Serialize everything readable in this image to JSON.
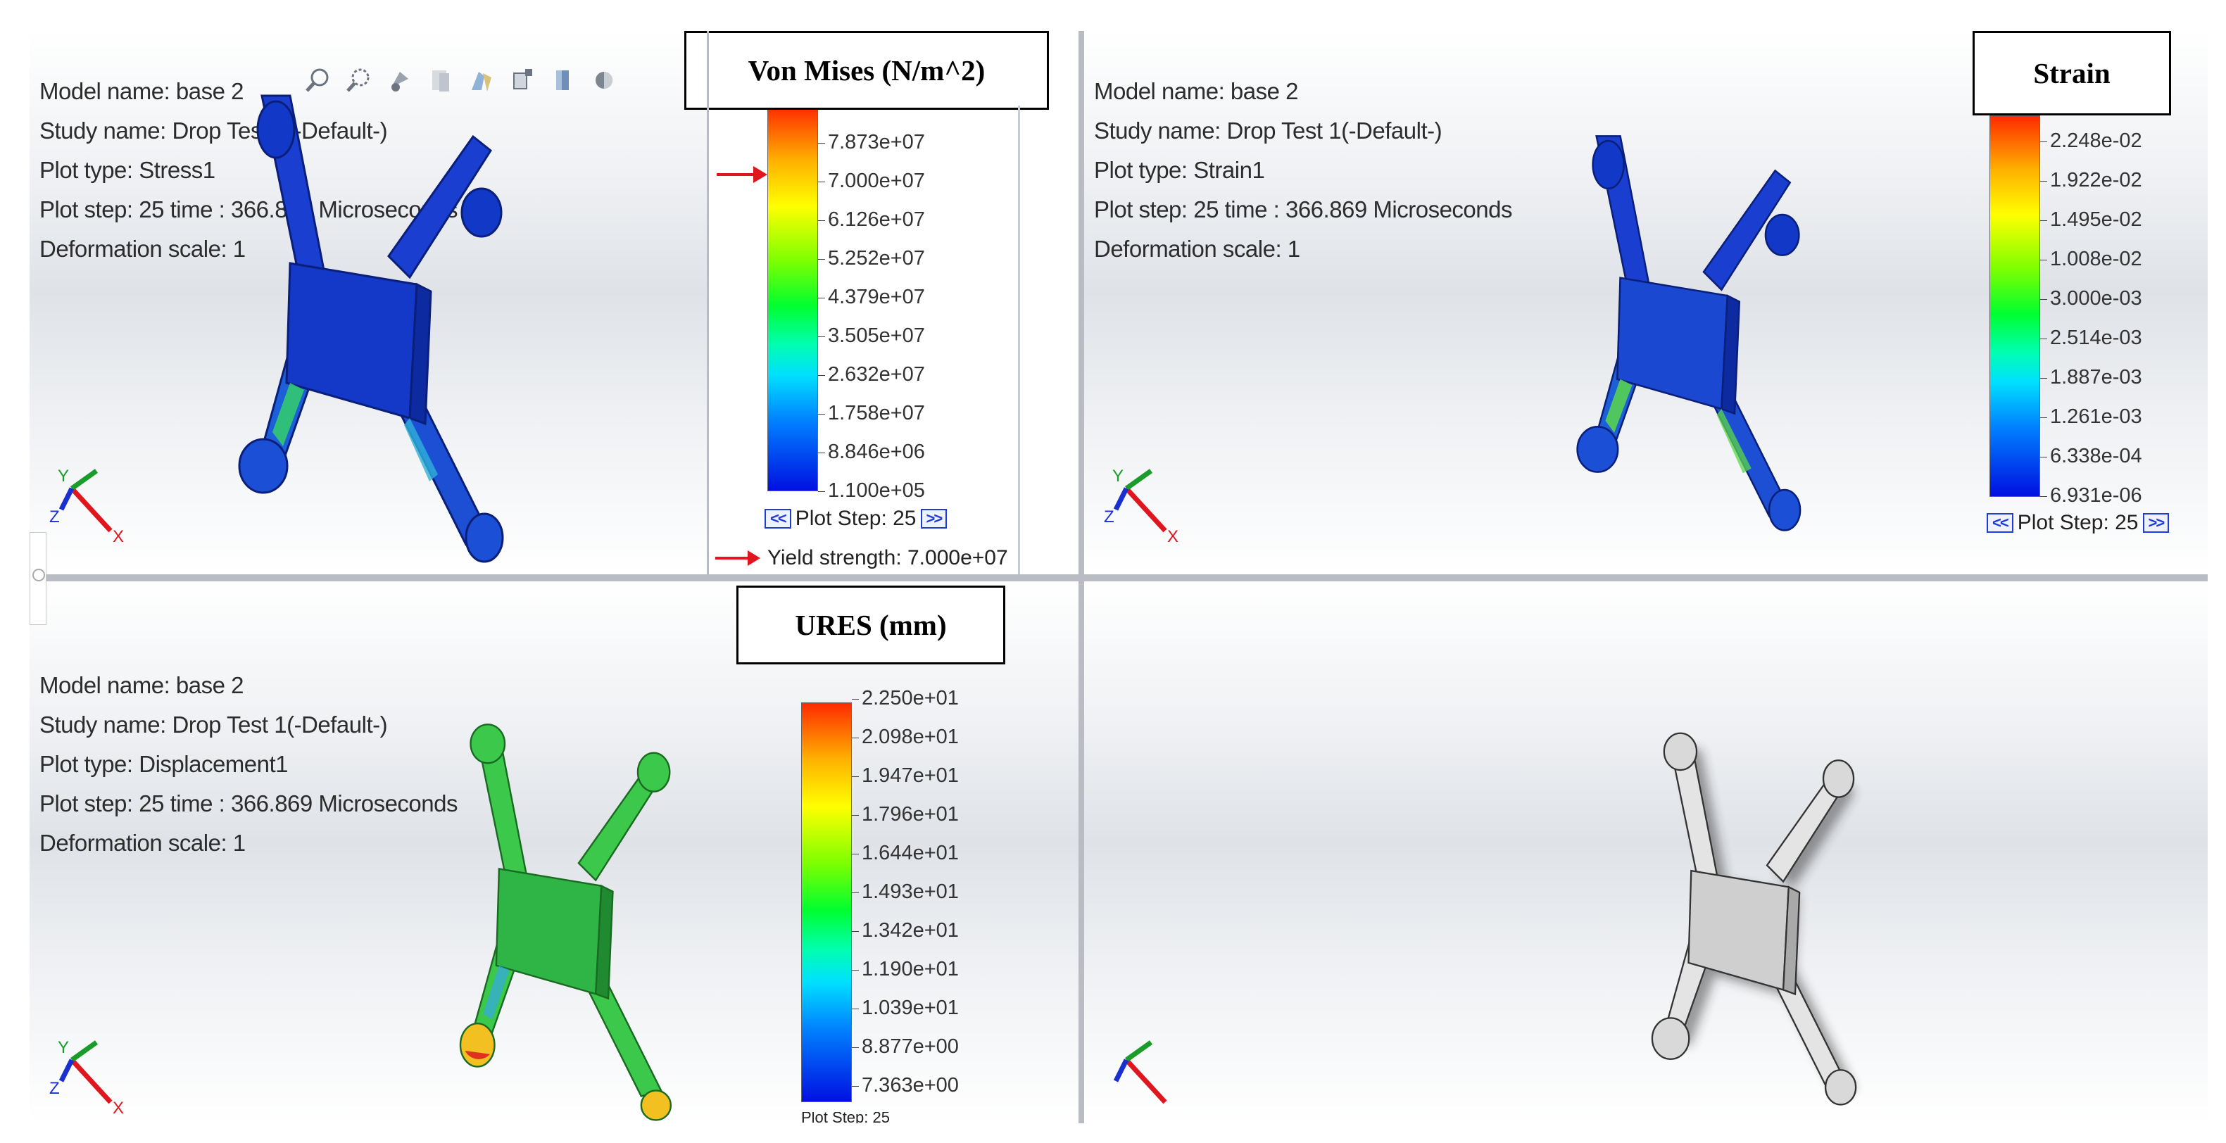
{
  "colors": {
    "stress_model": "#1238c8",
    "strain_model": "#1238c8",
    "displacement_model": "#2fc23a",
    "plain_model": "#d4d4d4",
    "step_button": "#1f3dd6",
    "arrow": "#e0161e"
  },
  "toolbar_icons": [
    "zoom-to-fit-icon",
    "zoom-area-icon",
    "previous-view-icon",
    "section-view-icon",
    "view-orientation-icon",
    "display-style-icon",
    "hide-show-icon",
    "edit-appearance-icon"
  ],
  "viewports": {
    "stress": {
      "info": {
        "model_name": "Model name: base 2",
        "study_name": "Study name: Drop Test 1(-Default-)",
        "plot_type": "Plot type:  Stress1",
        "plot_step": "Plot step: 25   time : 366.869 Microseconds",
        "deformation": "Deformation scale: 1"
      },
      "title": "Von Mises (N/m^2)",
      "legend": [
        "7.873e+07",
        "7.000e+07",
        "6.126e+07",
        "5.252e+07",
        "4.379e+07",
        "3.505e+07",
        "2.632e+07",
        "1.758e+07",
        "8.846e+06",
        "1.100e+05"
      ],
      "plot_step_label": "Plot Step: 25",
      "prev_label": "<<",
      "next_label": ">>",
      "yield_label": "Yield strength: 7.000e+07"
    },
    "strain": {
      "info": {
        "model_name": "Model name: base 2",
        "study_name": "Study name: Drop Test 1(-Default-)",
        "plot_type": "Plot type:  Strain1",
        "plot_step": "Plot step: 25   time : 366.869 Microseconds",
        "deformation": "Deformation scale: 1"
      },
      "title": "Strain",
      "legend": [
        "2.248e-02",
        "1.922e-02",
        "1.495e-02",
        "1.008e-02",
        "3.000e-03",
        "2.514e-03",
        "1.887e-03",
        "1.261e-03",
        "6.338e-04",
        "6.931e-06"
      ],
      "plot_step_label": "Plot Step: 25",
      "prev_label": "<<",
      "next_label": ">>"
    },
    "displacement": {
      "info": {
        "model_name": "Model name: base 2",
        "study_name": "Study name: Drop Test 1(-Default-)",
        "plot_type": "Plot type:  Displacement1",
        "plot_step": "Plot step: 25   time : 366.869 Microseconds",
        "deformation": "Deformation scale: 1"
      },
      "title": "URES (mm)",
      "legend": [
        "2.250e+01",
        "2.098e+01",
        "1.947e+01",
        "1.796e+01",
        "1.644e+01",
        "1.493e+01",
        "1.342e+01",
        "1.190e+01",
        "1.039e+01",
        "8.877e+00",
        "7.363e+00"
      ],
      "plot_step_label": "Plot Step: 25"
    }
  }
}
